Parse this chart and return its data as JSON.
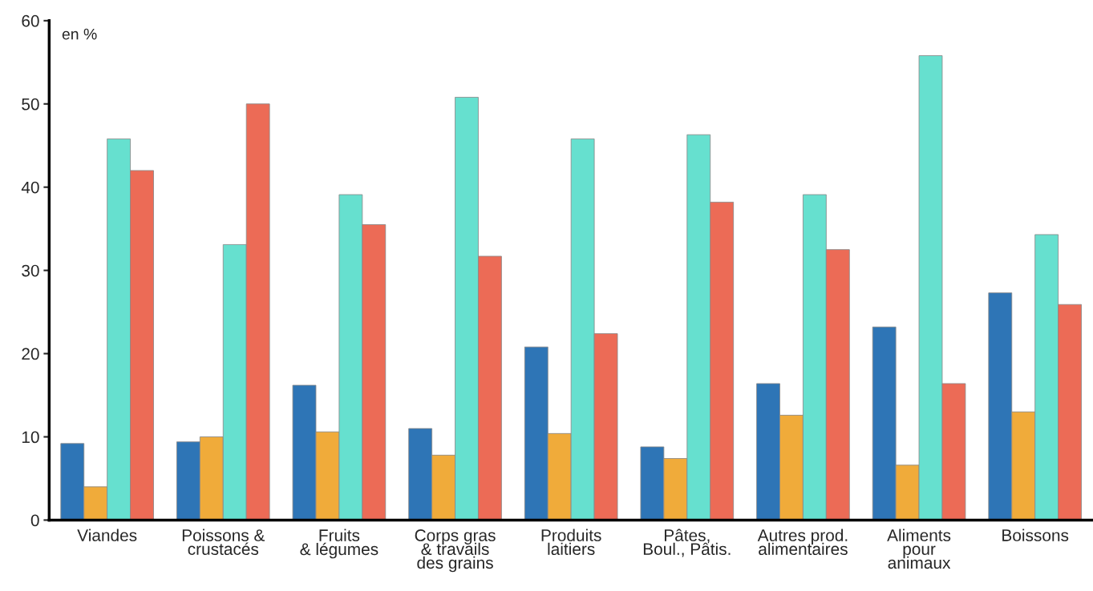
{
  "chart_data": {
    "type": "bar",
    "ylabel": "en %",
    "categories": [
      "Viandes",
      "Poissons &\ncrustacés",
      "Fruits\n& légumes",
      "Corps gras\n& travails\ndes grains",
      "Produits\nlaitiers",
      "Pâtes,\nBoul., Pâtis.",
      "Autres prod.\nalimentaires",
      "Aliments\npour\nanimaux",
      "Boissons"
    ],
    "series": [
      {
        "color": "#2e75b6",
        "values": [
          9.2,
          9.4,
          16.2,
          11.0,
          20.8,
          8.8,
          16.4,
          23.2,
          27.3
        ]
      },
      {
        "color": "#f0ab3a",
        "values": [
          4.0,
          10.0,
          10.6,
          7.8,
          10.4,
          7.4,
          12.6,
          6.6,
          13.0
        ]
      },
      {
        "color": "#66e0cf",
        "values": [
          45.8,
          33.1,
          39.1,
          50.8,
          45.8,
          46.3,
          39.1,
          55.8,
          34.3
        ]
      },
      {
        "color": "#ec6b56",
        "values": [
          42.0,
          50.0,
          35.5,
          31.7,
          22.4,
          38.2,
          32.5,
          16.4,
          25.9
        ]
      }
    ],
    "ylim": [
      0,
      60
    ],
    "yticks": [
      0,
      10,
      20,
      30,
      40,
      50,
      60
    ],
    "grid": false
  }
}
